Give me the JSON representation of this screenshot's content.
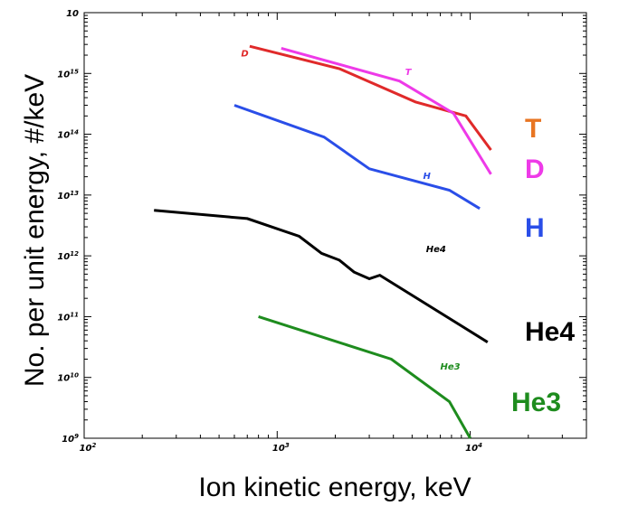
{
  "chart_data": {
    "type": "line",
    "title": "",
    "xlabel": "Ion kinetic energy, keV",
    "ylabel": "No. per unit energy, #/keV",
    "x_scale": "log",
    "y_scale": "log",
    "xlim": [
      100,
      40000
    ],
    "ylim": [
      1000000000.0,
      1e+16
    ],
    "x_ticks": [
      {
        "value": 100,
        "label": "10",
        "exp": "2"
      },
      {
        "value": 1000,
        "label": "10",
        "exp": "3"
      },
      {
        "value": 10000,
        "label": "10",
        "exp": "4"
      }
    ],
    "y_ticks": [
      {
        "value": 1000000000.0,
        "label": "10",
        "exp": "9"
      },
      {
        "value": 10000000000.0,
        "label": "10",
        "exp": "10"
      },
      {
        "value": 100000000000.0,
        "label": "10",
        "exp": "11"
      },
      {
        "value": 1000000000000.0,
        "label": "10",
        "exp": "12"
      },
      {
        "value": 10000000000000.0,
        "label": "10",
        "exp": "13"
      },
      {
        "value": 100000000000000.0,
        "label": "10",
        "exp": "14"
      },
      {
        "value": 1000000000000000.0,
        "label": "10",
        "exp": "15"
      },
      {
        "value": 1e+16,
        "label": "10",
        "exp": ""
      }
    ],
    "grid": false,
    "series": [
      {
        "name": "D",
        "color": "#e02a2a",
        "x": [
          720,
          2100,
          5200,
          9500,
          12800
        ],
        "y": [
          2800000000000000.0,
          1200000000000000.0,
          340000000000000.0,
          200000000000000.0,
          55000000000000.0
        ]
      },
      {
        "name": "T",
        "color": "#ee3ae8",
        "x": [
          1050,
          4300,
          8200,
          12800
        ],
        "y": [
          2600000000000000.0,
          750000000000000.0,
          220000000000000.0,
          22000000000000.0
        ]
      },
      {
        "name": "H",
        "color": "#2a4ee8",
        "x": [
          600,
          1750,
          3000,
          7800,
          11200
        ],
        "y": [
          300000000000000.0,
          90000000000000.0,
          27000000000000.0,
          12000000000000.0,
          6000000000000.0
        ]
      },
      {
        "name": "He4",
        "color": "#000000",
        "x": [
          230,
          700,
          1300,
          1700,
          2100,
          2500,
          3000,
          3400,
          12300
        ],
        "y": [
          5600000000000.0,
          4100000000000.0,
          2100000000000.0,
          1100000000000.0,
          850000000000.0,
          540000000000.0,
          420000000000.0,
          480000000000.0,
          38000000000.0
        ]
      },
      {
        "name": "He3",
        "color": "#1e8c1e",
        "x": [
          800,
          3900,
          7800,
          10000
        ],
        "y": [
          100000000000.0,
          20000000000.0,
          4000000000.0,
          1000000000.0
        ]
      }
    ],
    "annotations": [
      {
        "text": "D",
        "x": 650,
        "y": 1900000000000000.0,
        "color": "#e02a2a"
      },
      {
        "text": "T",
        "x": 4600,
        "y": 950000000000000.0,
        "color": "#ee3ae8"
      },
      {
        "text": "H",
        "x": 5700,
        "y": 18500000000000.0,
        "color": "#2a4ee8"
      },
      {
        "text": "He4",
        "x": 5900,
        "y": 1150000000000.0,
        "color": "#000000"
      },
      {
        "text": "He3",
        "x": 7000,
        "y": 13500000000.0,
        "color": "#1e8c1e"
      }
    ],
    "side_labels": [
      {
        "text": "T",
        "color": "#e87522"
      },
      {
        "text": "D",
        "color": "#ee3ae8"
      },
      {
        "text": "H",
        "color": "#2a4ee8"
      },
      {
        "text": "He4",
        "color": "#000000"
      },
      {
        "text": "He3",
        "color": "#1e8c1e"
      }
    ]
  }
}
